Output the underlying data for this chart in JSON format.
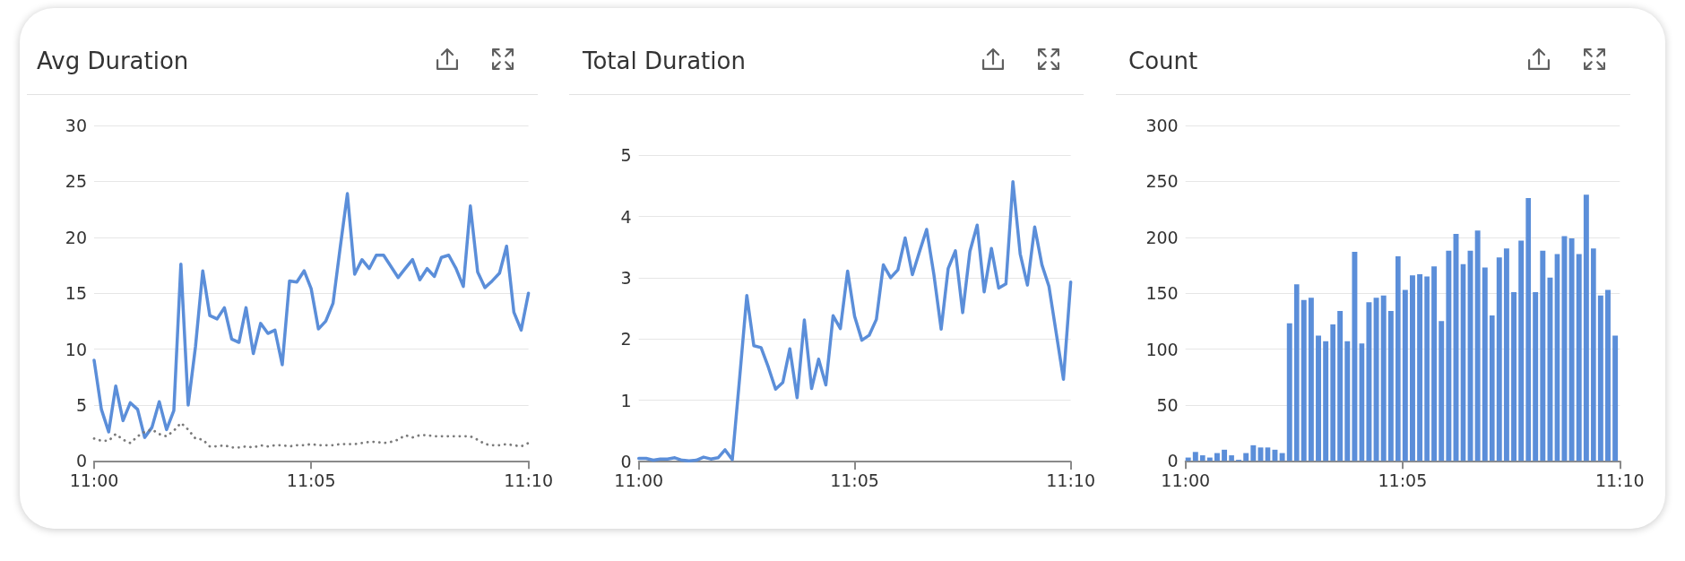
{
  "chart_data": [
    {
      "type": "line",
      "title": "Avg Duration",
      "x": [
        11,
        11.0028,
        11.0056,
        11.0083,
        11.0111,
        11.0139,
        11.0167,
        11.0194,
        11.0222,
        11.025,
        11.0278,
        11.0306,
        11.0333,
        11.0361,
        11.0389,
        11.0417,
        11.0444,
        11.0472,
        11.05,
        11.0528,
        11.0556,
        11.0583,
        11.0611,
        11.0639,
        11.0667,
        11.0694,
        11.0722,
        11.075,
        11.0778,
        11.0806,
        11.0833,
        11.0861,
        11.0889,
        11.0917,
        11.0944,
        11.0972,
        11.1,
        11.1028,
        11.1056,
        11.1083,
        11.1111,
        11.1139,
        11.1167,
        11.1194,
        11.1222,
        11.125,
        11.1278,
        11.1306,
        11.1333,
        11.1361,
        11.1389,
        11.1417,
        11.1444,
        11.1472,
        11.15,
        11.1528,
        11.1556,
        11.1583,
        11.1611,
        11.1639,
        11.1667
      ],
      "series": [
        {
          "color": "#5b8ed9",
          "line_style": "solid",
          "values": [
            9.0,
            4.6,
            2.6,
            6.7,
            3.6,
            5.2,
            4.6,
            2.1,
            3.0,
            5.3,
            2.8,
            4.5,
            17.6,
            5.0,
            10.2,
            17.0,
            13.0,
            12.7,
            13.7,
            10.9,
            10.6,
            13.7,
            9.6,
            12.3,
            11.4,
            11.7,
            8.6,
            16.1,
            16.0,
            17.0,
            15.4,
            11.8,
            12.5,
            14.1,
            19.0,
            23.9,
            16.7,
            18.0,
            17.2,
            18.4,
            18.4,
            17.4,
            16.4,
            17.2,
            18.0,
            16.2,
            17.2,
            16.5,
            18.2,
            18.4,
            17.2,
            15.6,
            22.8,
            16.9,
            15.5,
            16.1,
            16.8,
            19.2,
            13.3,
            11.7,
            15.0
          ]
        },
        {
          "color": "#7a7a7a",
          "line_style": "dotted",
          "values": [
            2.0,
            1.8,
            1.8,
            2.4,
            1.9,
            1.6,
            2.2,
            2.6,
            2.8,
            2.4,
            2.2,
            2.7,
            3.4,
            2.8,
            2.0,
            1.9,
            1.3,
            1.3,
            1.4,
            1.2,
            1.2,
            1.3,
            1.2,
            1.4,
            1.3,
            1.4,
            1.4,
            1.3,
            1.4,
            1.4,
            1.5,
            1.4,
            1.4,
            1.4,
            1.5,
            1.5,
            1.5,
            1.6,
            1.7,
            1.7,
            1.6,
            1.7,
            1.9,
            2.3,
            2.1,
            2.3,
            2.3,
            2.2,
            2.2,
            2.2,
            2.2,
            2.2,
            2.2,
            1.9,
            1.5,
            1.4,
            1.4,
            1.5,
            1.4,
            1.3,
            1.6
          ]
        }
      ],
      "xlim": [
        11,
        11.1667
      ],
      "xticks": [
        {
          "value": 11,
          "label": "11:00"
        },
        {
          "value": 11.0833,
          "label": "11:05"
        },
        {
          "value": 11.1667,
          "label": "11:10"
        }
      ],
      "ylim": [
        0,
        30
      ],
      "yticks": [
        0,
        5,
        10,
        15,
        20,
        25,
        30
      ],
      "grid": "y",
      "marker": "none"
    },
    {
      "type": "line",
      "title": "Total Duration",
      "x": [
        11,
        11.0028,
        11.0056,
        11.0083,
        11.0111,
        11.0139,
        11.0167,
        11.0194,
        11.0222,
        11.025,
        11.0278,
        11.0306,
        11.0333,
        11.0361,
        11.0389,
        11.0417,
        11.0444,
        11.0472,
        11.05,
        11.0528,
        11.0556,
        11.0583,
        11.0611,
        11.0639,
        11.0667,
        11.0694,
        11.0722,
        11.075,
        11.0778,
        11.0806,
        11.0833,
        11.0861,
        11.0889,
        11.0917,
        11.0944,
        11.0972,
        11.1,
        11.1028,
        11.1056,
        11.1083,
        11.1111,
        11.1139,
        11.1167,
        11.1194,
        11.1222,
        11.125,
        11.1278,
        11.1306,
        11.1333,
        11.1361,
        11.1389,
        11.1417,
        11.1444,
        11.1472,
        11.15,
        11.1528,
        11.1556,
        11.1583,
        11.1611,
        11.1639,
        11.1667
      ],
      "series": [
        {
          "color": "#5b8ed9",
          "line_style": "solid",
          "values": [
            0.05,
            0.05,
            0.02,
            0.04,
            0.04,
            0.06,
            0.02,
            0.01,
            0.02,
            0.07,
            0.04,
            0.06,
            0.19,
            0.03,
            1.35,
            2.71,
            1.89,
            1.86,
            1.54,
            1.18,
            1.29,
            1.84,
            1.04,
            2.31,
            1.19,
            1.67,
            1.25,
            2.38,
            2.17,
            3.11,
            2.37,
            1.98,
            2.06,
            2.32,
            3.21,
            3.0,
            3.13,
            3.65,
            3.05,
            3.42,
            3.79,
            3.05,
            2.16,
            3.15,
            3.44,
            2.43,
            3.43,
            3.86,
            2.77,
            3.48,
            2.83,
            2.9,
            4.57,
            3.39,
            2.88,
            3.83,
            3.21,
            2.86,
            2.1,
            1.34,
            2.93
          ]
        }
      ],
      "xlim": [
        11,
        11.1667
      ],
      "xticks": [
        {
          "value": 11,
          "label": "11:00"
        },
        {
          "value": 11.0833,
          "label": "11:05"
        },
        {
          "value": 11.1667,
          "label": "11:10"
        }
      ],
      "ylim": [
        0,
        5
      ],
      "yticks": [
        0,
        1,
        2,
        3,
        4,
        5
      ],
      "grid": "y",
      "marker": "none"
    },
    {
      "type": "histogram",
      "title": "Count",
      "bins": [
        11,
        11.0028,
        11.0056,
        11.0083,
        11.0111,
        11.0139,
        11.0167,
        11.0194,
        11.0222,
        11.025,
        11.0278,
        11.0306,
        11.0333,
        11.0361,
        11.0389,
        11.0417,
        11.0444,
        11.0472,
        11.05,
        11.0528,
        11.0556,
        11.0583,
        11.0611,
        11.0639,
        11.0667,
        11.0694,
        11.0722,
        11.075,
        11.0778,
        11.0806,
        11.0833,
        11.0861,
        11.0889,
        11.0917,
        11.0944,
        11.0972,
        11.1,
        11.1028,
        11.1056,
        11.1083,
        11.1111,
        11.1139,
        11.1167,
        11.1194,
        11.1222,
        11.125,
        11.1278,
        11.1306,
        11.1333,
        11.1361,
        11.1389,
        11.1417,
        11.1444,
        11.1472,
        11.15,
        11.1528,
        11.1556,
        11.1583,
        11.1611,
        11.1639,
        11.1667
      ],
      "values": [
        3,
        8,
        5,
        3,
        7,
        10,
        5,
        1,
        7,
        14,
        12,
        12,
        10,
        7,
        123,
        158,
        144,
        146,
        112,
        107,
        122,
        134,
        107,
        187,
        105,
        142,
        146,
        148,
        134,
        183,
        153,
        166,
        167,
        165,
        174,
        125,
        188,
        203,
        176,
        188,
        206,
        173,
        130,
        182,
        190,
        151,
        197,
        235,
        151,
        188,
        164,
        185,
        201,
        199,
        185,
        238,
        190,
        148,
        153,
        112
      ],
      "color": "#5b8ed9",
      "xlim": [
        11,
        11.1667
      ],
      "xticks": [
        {
          "value": 11,
          "label": "11:00"
        },
        {
          "value": 11.0833,
          "label": "11:05"
        },
        {
          "value": 11.1667,
          "label": "11:10"
        }
      ],
      "ylim": [
        0,
        300
      ],
      "yticks": [
        0,
        50,
        100,
        150,
        200,
        250,
        300
      ],
      "grid": "y"
    }
  ]
}
